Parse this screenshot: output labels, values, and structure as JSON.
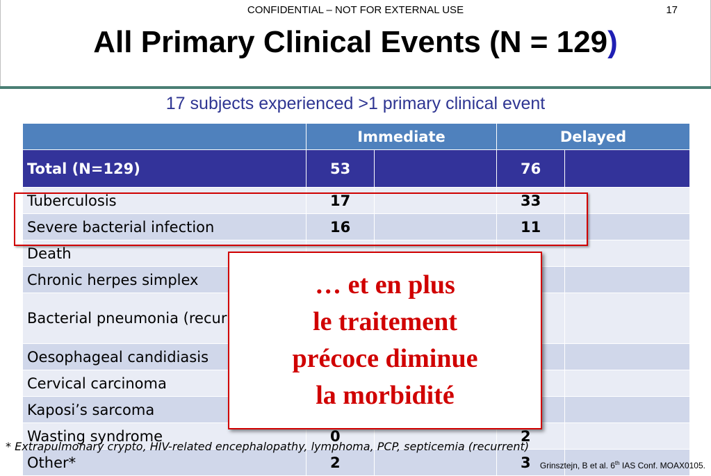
{
  "header": {
    "confidential": "CONFIDENTIAL – NOT FOR EXTERNAL USE",
    "page_number": "17",
    "title_main": "All Primary Clinical Events (N = 129",
    "title_paren": ")"
  },
  "subtitle": "17 subjects experienced >1 primary clinical event",
  "table": {
    "col_immediate": "Immediate",
    "col_delayed": "Delayed",
    "total": {
      "label": "Total (N=129)",
      "immediate": "53",
      "delayed": "76"
    },
    "rows": [
      {
        "label": "Tuberculosis",
        "immediate": "17",
        "delayed": "33"
      },
      {
        "label": "Severe bacterial infection",
        "immediate": "16",
        "delayed": "11"
      },
      {
        "label": "Death",
        "immediate": "",
        "delayed": ""
      },
      {
        "label": "Chronic herpes simplex",
        "immediate": "",
        "delayed": ""
      },
      {
        "label": "Bacterial pneumonia (recurrent)",
        "immediate": "",
        "delayed": ""
      },
      {
        "label": "Oesophageal candidiasis",
        "immediate": "",
        "delayed": ""
      },
      {
        "label": "Cervical carcinoma",
        "immediate": "",
        "delayed": ""
      },
      {
        "label": "Kaposi’s sarcoma",
        "immediate": "",
        "delayed": ""
      },
      {
        "label": "Wasting syndrome",
        "immediate": "0",
        "delayed": "2"
      },
      {
        "label": "Other*",
        "immediate": "2",
        "delayed": "3"
      }
    ]
  },
  "callout": {
    "line1": "… et en plus",
    "line2": "le traitement",
    "line3": "précoce diminue",
    "line4": "la morbidité"
  },
  "footnote": "* Extrapulmonary crypto, HIV-related encephalopathy, lymphoma, PCP, septicemia (recurrent)",
  "citation": {
    "prefix": "Grinsztejn, B et al.  6",
    "sup": "th",
    "suffix": " IAS Conf. MOAX0105."
  },
  "colors": {
    "header_rule": "#4a7f74",
    "table_header": "#4f81bd",
    "total_row": "#33339a",
    "callout_red": "#d00000",
    "subtitle_blue": "#2e3592"
  }
}
